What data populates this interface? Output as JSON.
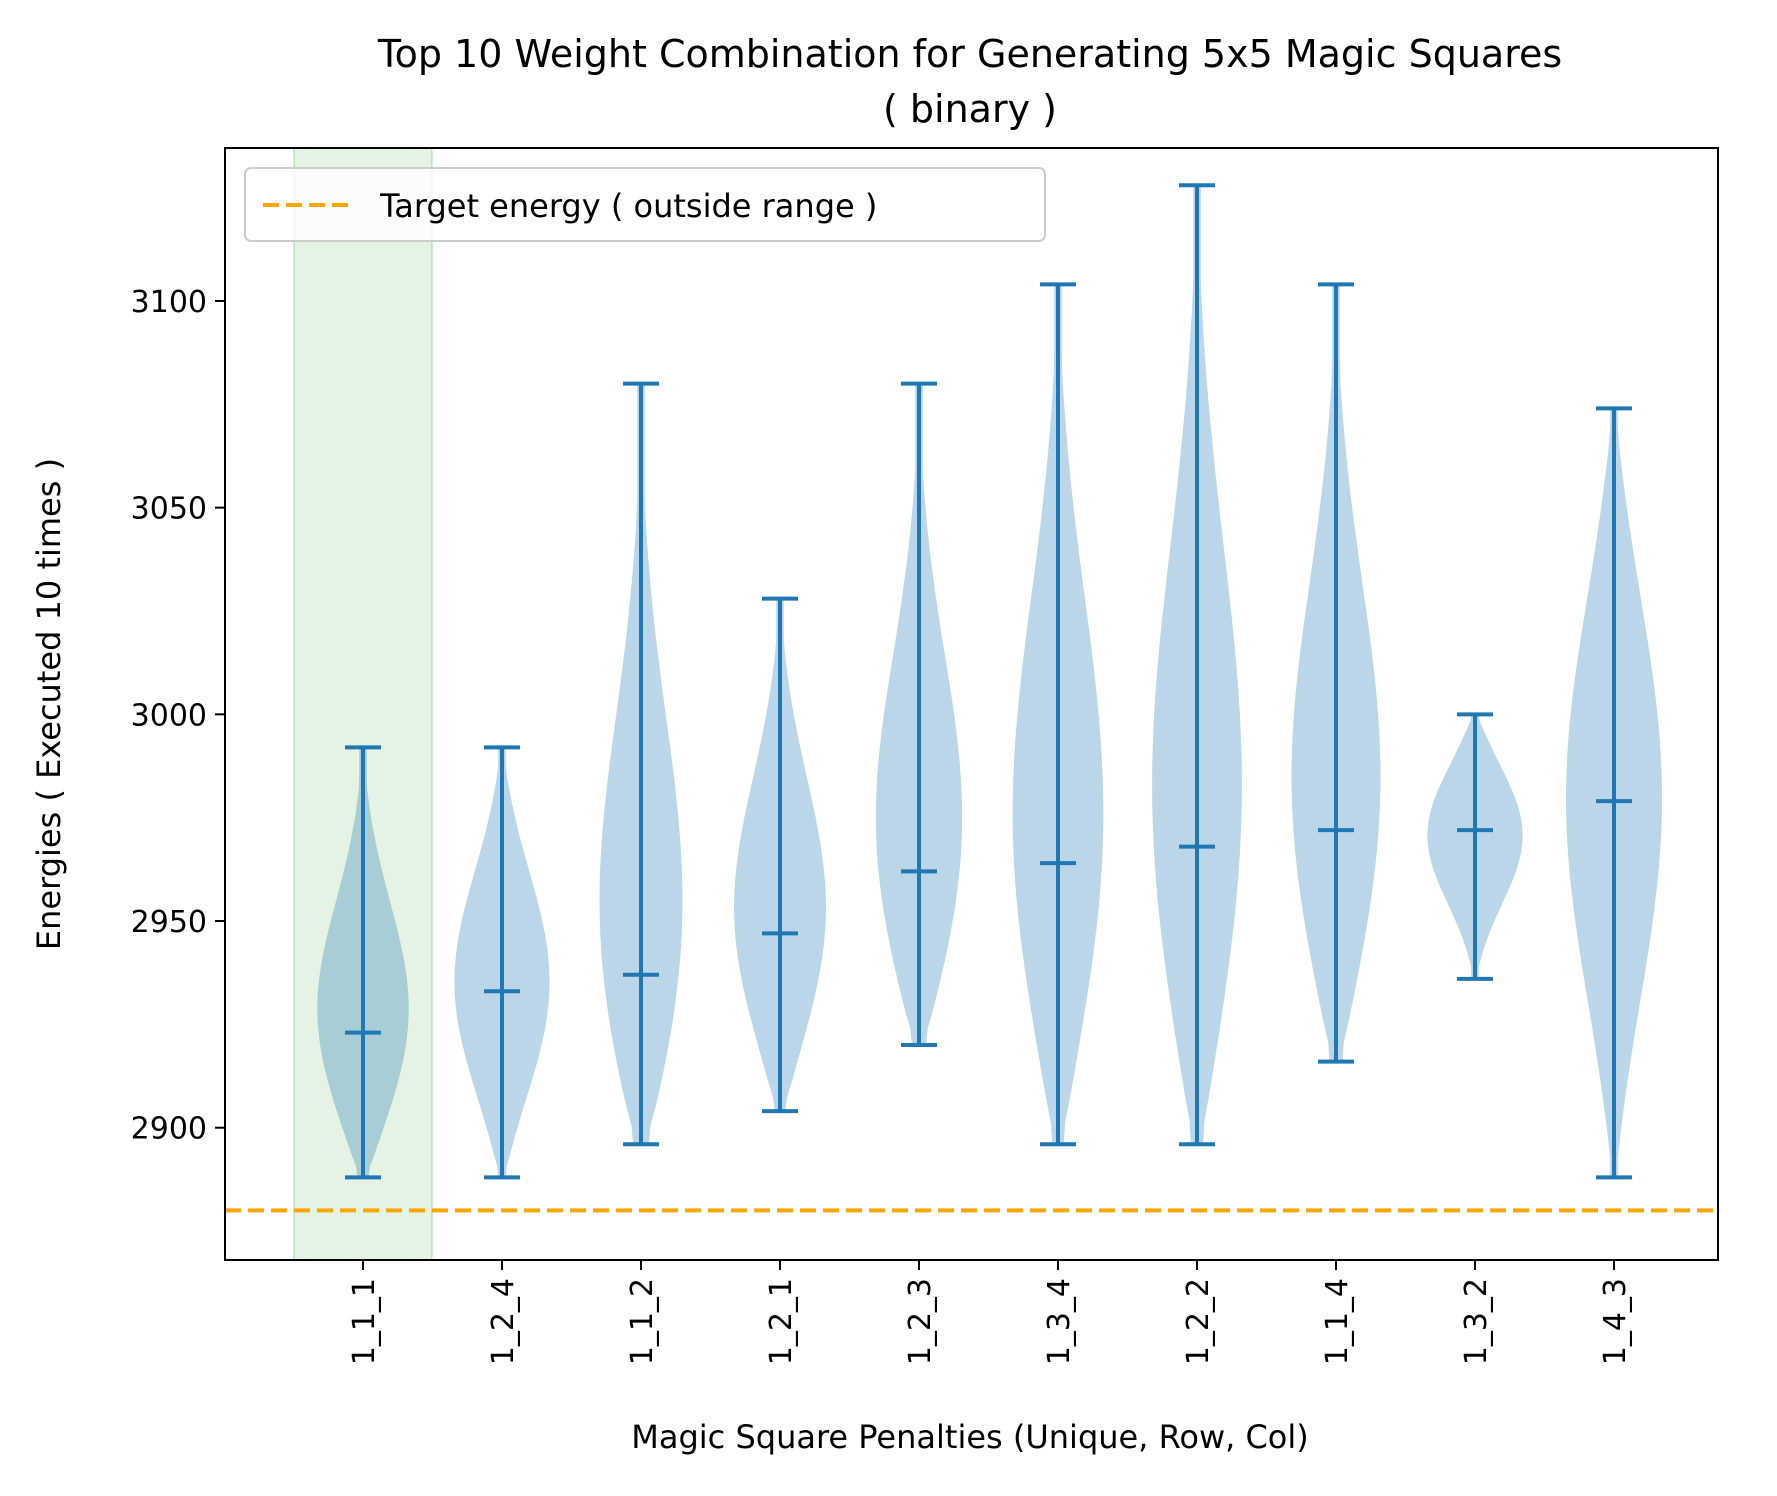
{
  "chart_data": {
    "type": "violin",
    "title": "Top 10 Weight Combination for Generating 5x5 Magic Squares",
    "subtitle": "( binary )",
    "xlabel": "Magic Square Penalties (Unique, Row, Col)",
    "ylabel": "Energies ( Executed 10 times )",
    "ylim": [
      2868,
      3137
    ],
    "yticks": [
      2900,
      2950,
      3000,
      3050,
      3100
    ],
    "categories": [
      "1_1_1",
      "1_2_4",
      "1_1_2",
      "1_2_1",
      "1_2_3",
      "1_3_4",
      "1_2_2",
      "1_1_4",
      "1_3_2",
      "1_4_3"
    ],
    "violins": [
      {
        "label": "1_1_1",
        "min": 2888,
        "max": 2992,
        "mean": 2923
      },
      {
        "label": "1_2_4",
        "min": 2888,
        "max": 2992,
        "mean": 2933
      },
      {
        "label": "1_1_2",
        "min": 2896,
        "max": 3080,
        "mean": 2937
      },
      {
        "label": "1_2_1",
        "min": 2904,
        "max": 3028,
        "mean": 2947
      },
      {
        "label": "1_2_3",
        "min": 2920,
        "max": 3080,
        "mean": 2962
      },
      {
        "label": "1_3_4",
        "min": 2896,
        "max": 3104,
        "mean": 2964
      },
      {
        "label": "1_2_2",
        "min": 2896,
        "max": 3128,
        "mean": 2968
      },
      {
        "label": "1_1_4",
        "min": 2916,
        "max": 3104,
        "mean": 2972
      },
      {
        "label": "1_3_2",
        "min": 2936,
        "max": 3000,
        "mean": 2972
      },
      {
        "label": "1_4_3",
        "min": 2888,
        "max": 3074,
        "mean": 2979
      }
    ],
    "target_energy": 2880,
    "highlighted_category": "1_1_1",
    "legend": {
      "placement": "upper-left",
      "entries": [
        "Target energy ( outside range )"
      ]
    },
    "grid": false,
    "colors": {
      "violin_fill": "#1f77b4",
      "violin_lines": "#1f77b4",
      "target_line": "#ffa500",
      "highlight_band": "#2ca02c"
    }
  }
}
